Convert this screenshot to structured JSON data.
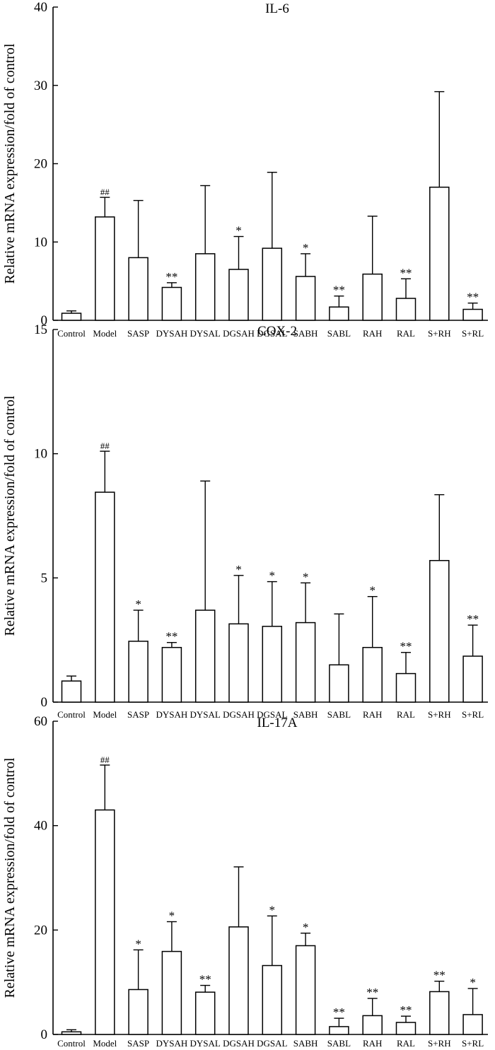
{
  "chart_data": [
    {
      "type": "bar",
      "title": "IL-6",
      "ylabel": "Relative mRNA expression/fold of control",
      "xlabel": "",
      "ylim": [
        0,
        40
      ],
      "yticks": [
        0,
        10,
        20,
        30,
        40
      ],
      "categories": [
        "Control",
        "Model",
        "SASP",
        "DYSAH",
        "DYSAL",
        "DGSAH",
        "DGSAL",
        "SABH",
        "SABL",
        "RAH",
        "RAL",
        "S+RH",
        "S+RL"
      ],
      "values": [
        0.9,
        13.2,
        8.0,
        4.2,
        8.5,
        6.5,
        9.2,
        5.6,
        1.7,
        5.9,
        2.8,
        17.0,
        1.4
      ],
      "errors": [
        0.3,
        2.5,
        7.3,
        0.6,
        8.7,
        4.2,
        9.7,
        2.9,
        1.4,
        7.4,
        2.5,
        12.2,
        0.8
      ],
      "significance": [
        "",
        "##",
        "",
        "**",
        "",
        "*",
        "",
        "*",
        "**",
        "",
        "**",
        "",
        "**"
      ]
    },
    {
      "type": "bar",
      "title": "COX-2",
      "ylabel": "Relative mRNA expression/fold of control",
      "xlabel": "",
      "ylim": [
        0,
        15
      ],
      "yticks": [
        0,
        5,
        10,
        15
      ],
      "categories": [
        "Control",
        "Model",
        "SASP",
        "DYSAH",
        "DYSAL",
        "DGSAH",
        "DGSAL",
        "SABH",
        "SABL",
        "RAH",
        "RAL",
        "S+RH",
        "S+RL"
      ],
      "values": [
        0.85,
        8.45,
        2.45,
        2.2,
        3.7,
        3.15,
        3.05,
        3.2,
        1.5,
        2.2,
        1.15,
        5.7,
        1.85
      ],
      "errors": [
        0.2,
        1.65,
        1.25,
        0.2,
        5.2,
        1.95,
        1.8,
        1.6,
        2.05,
        2.05,
        0.85,
        2.65,
        1.25
      ],
      "significance": [
        "",
        "##",
        "*",
        "**",
        "",
        "*",
        "*",
        "*",
        "",
        "*",
        "**",
        "",
        "**"
      ]
    },
    {
      "type": "bar",
      "title": "IL-17A",
      "ylabel": "Relative mRNA expression/fold of control",
      "xlabel": "",
      "ylim": [
        0,
        60
      ],
      "yticks": [
        0,
        20,
        40,
        60
      ],
      "categories": [
        "Control",
        "Model",
        "SASP",
        "DYSAH",
        "DYSAL",
        "DGSAH",
        "DGSAL",
        "SABH",
        "SABL",
        "RAH",
        "RAL",
        "S+RH",
        "S+RL"
      ],
      "values": [
        0.5,
        43.0,
        8.6,
        15.9,
        8.1,
        20.6,
        13.2,
        17.0,
        1.5,
        3.6,
        2.3,
        8.2,
        3.8
      ],
      "errors": [
        0.4,
        8.6,
        7.6,
        5.7,
        1.3,
        11.5,
        9.5,
        2.4,
        1.6,
        3.3,
        1.2,
        2.0,
        5.0
      ],
      "significance": [
        "",
        "##",
        "*",
        "*",
        "**",
        "",
        "*",
        "*",
        "**",
        "**",
        "**",
        "**",
        "*"
      ]
    }
  ]
}
